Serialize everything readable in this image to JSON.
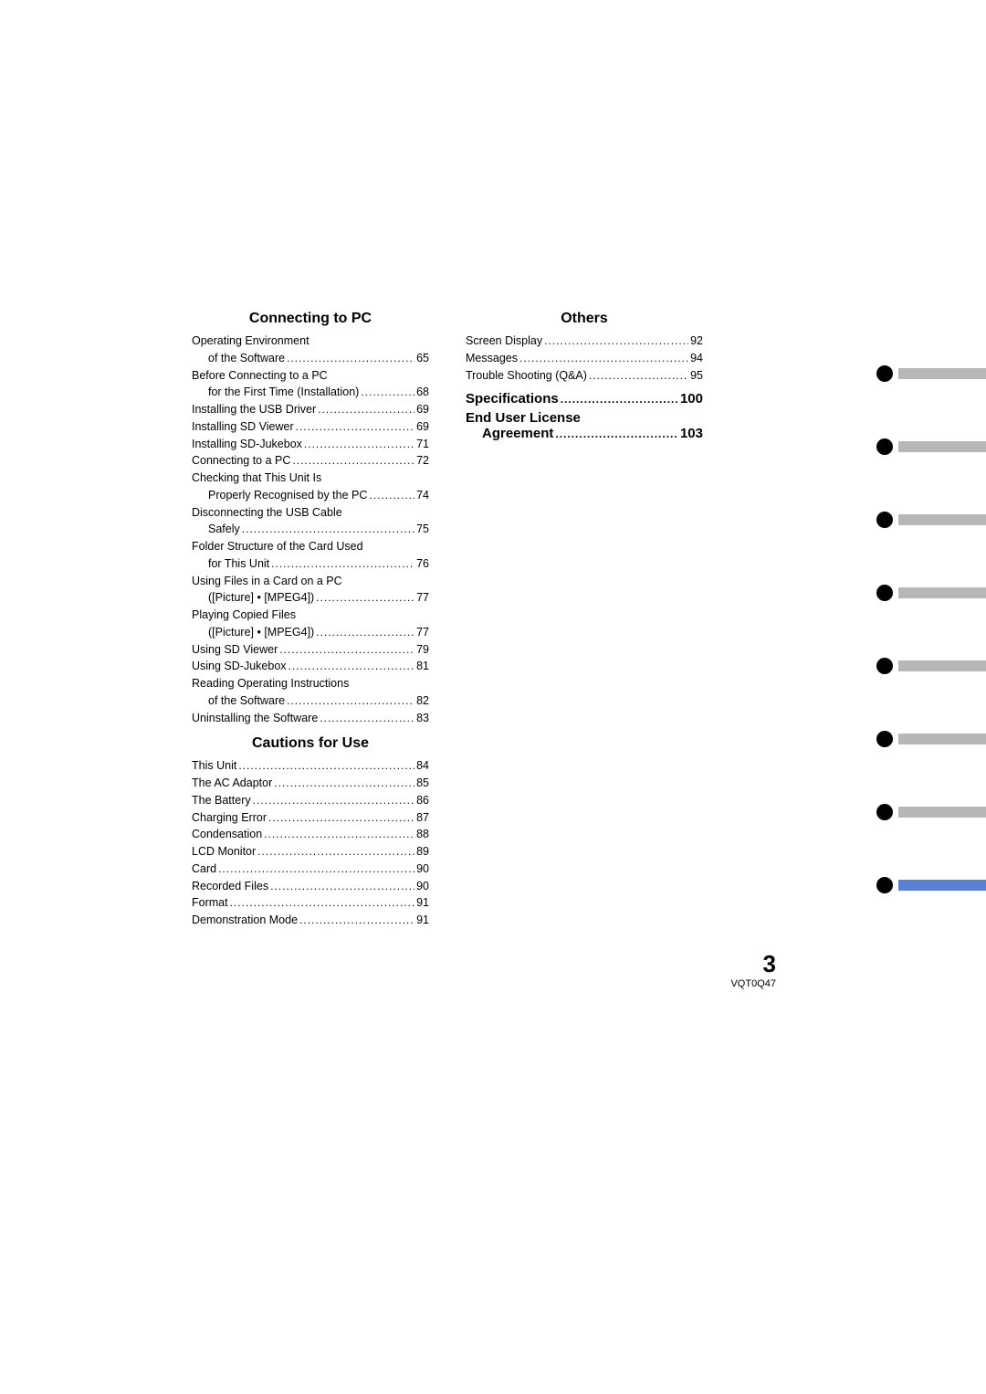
{
  "left_column": {
    "section1": {
      "title": "Connecting to PC",
      "items": [
        {
          "label": "Operating Environment",
          "sub": [
            {
              "label": "of the Software",
              "page": "65"
            }
          ]
        },
        {
          "label": "Before Connecting to a PC",
          "sub": [
            {
              "label": "for the First Time (Installation)",
              "page": "68"
            }
          ]
        },
        {
          "label": "Installing the USB Driver",
          "page": "69"
        },
        {
          "label": "Installing SD Viewer",
          "page": "69"
        },
        {
          "label": "Installing SD-Jukebox",
          "page": "71"
        },
        {
          "label": "Connecting to a PC",
          "page": "72"
        },
        {
          "label": "Checking that This Unit Is",
          "sub": [
            {
              "label": "Properly Recognised by the PC",
              "page": "74"
            }
          ]
        },
        {
          "label": "Disconnecting the USB Cable",
          "sub": [
            {
              "label": "Safely",
              "page": "75"
            }
          ]
        },
        {
          "label": "Folder Structure of the Card Used",
          "sub": [
            {
              "label": "for This Unit",
              "page": "76"
            }
          ]
        },
        {
          "label": "Using Files in a Card on a PC",
          "sub": [
            {
              "label": "([Picture] • [MPEG4])",
              "page": "77"
            }
          ]
        },
        {
          "label": "Playing Copied Files",
          "sub": [
            {
              "label": "([Picture] • [MPEG4])",
              "page": "77"
            }
          ]
        },
        {
          "label": "Using SD Viewer",
          "page": "79"
        },
        {
          "label": "Using SD-Jukebox",
          "page": "81"
        },
        {
          "label": "Reading Operating Instructions",
          "sub": [
            {
              "label": "of the Software",
              "page": "82"
            }
          ]
        },
        {
          "label": "Uninstalling the Software",
          "page": "83"
        }
      ]
    },
    "section2": {
      "title": "Cautions for Use",
      "items": [
        {
          "label": "This Unit",
          "page": "84"
        },
        {
          "label": "The AC Adaptor",
          "page": "85"
        },
        {
          "label": "The Battery",
          "page": "86"
        },
        {
          "label": "Charging Error",
          "page": "87"
        },
        {
          "label": "Condensation",
          "page": "88"
        },
        {
          "label": "LCD Monitor",
          "page": "89"
        },
        {
          "label": "Card",
          "page": "90"
        },
        {
          "label": "Recorded Files",
          "page": "90"
        },
        {
          "label": "Format",
          "page": "91"
        },
        {
          "label": "Demonstration Mode",
          "page": "91"
        }
      ]
    }
  },
  "right_column": {
    "section1": {
      "title": "Others",
      "items": [
        {
          "label": "Screen Display",
          "page": "92"
        },
        {
          "label": "Messages",
          "page": "94"
        },
        {
          "label": "Trouble Shooting (Q&A)",
          "page": "95"
        }
      ]
    },
    "headings": [
      {
        "label": "Specifications",
        "page": "100"
      },
      {
        "label_line1": "End User License",
        "label_line2": "Agreement",
        "page": "103"
      }
    ]
  },
  "tabs": [
    {
      "color": "gray"
    },
    {
      "color": "gray"
    },
    {
      "color": "gray"
    },
    {
      "color": "gray"
    },
    {
      "color": "gray"
    },
    {
      "color": "gray"
    },
    {
      "color": "gray"
    },
    {
      "color": "blue"
    }
  ],
  "footer": {
    "page_number": "3",
    "doc_code": "VQT0Q47"
  },
  "colors": {
    "tab_gray": "#b7b7b7",
    "tab_blue": "#5b7fd1",
    "dot_black": "#000000"
  }
}
